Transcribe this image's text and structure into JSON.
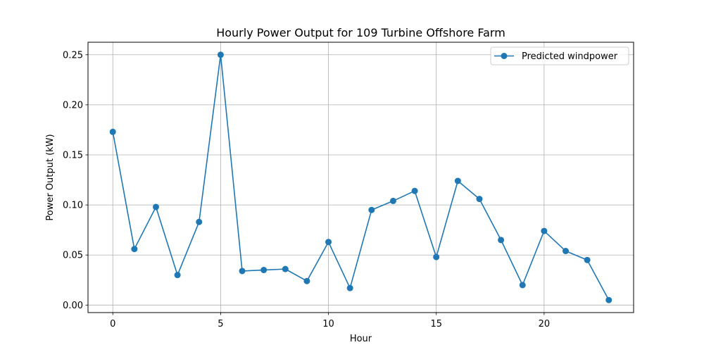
{
  "chart_data": {
    "type": "line",
    "title": "Hourly Power Output for 109 Turbine Offshore Farm",
    "xlabel": "Hour",
    "ylabel": "Power Output (kW)",
    "xlim": [
      -1.15,
      24.15
    ],
    "ylim": [
      -0.0075,
      0.2625
    ],
    "xticks": [
      0,
      5,
      10,
      15,
      20
    ],
    "xtick_labels": [
      "0",
      "5",
      "10",
      "15",
      "20"
    ],
    "yticks": [
      0.0,
      0.05,
      0.1,
      0.15,
      0.2,
      0.25
    ],
    "ytick_labels": [
      "0.00",
      "0.05",
      "0.10",
      "0.15",
      "0.20",
      "0.25"
    ],
    "grid": true,
    "legend_position": "upper right",
    "series": [
      {
        "name": "Predicted windpower",
        "color": "#1f77b4",
        "marker": "circle",
        "x": [
          0,
          1,
          2,
          3,
          4,
          5,
          6,
          7,
          8,
          9,
          10,
          11,
          12,
          13,
          14,
          15,
          16,
          17,
          18,
          19,
          20,
          21,
          22,
          23
        ],
        "y": [
          0.173,
          0.056,
          0.098,
          0.03,
          0.083,
          0.25,
          0.034,
          0.035,
          0.036,
          0.024,
          0.063,
          0.017,
          0.095,
          0.104,
          0.114,
          0.048,
          0.124,
          0.106,
          0.065,
          0.02,
          0.074,
          0.054,
          0.045,
          0.005
        ]
      }
    ]
  }
}
